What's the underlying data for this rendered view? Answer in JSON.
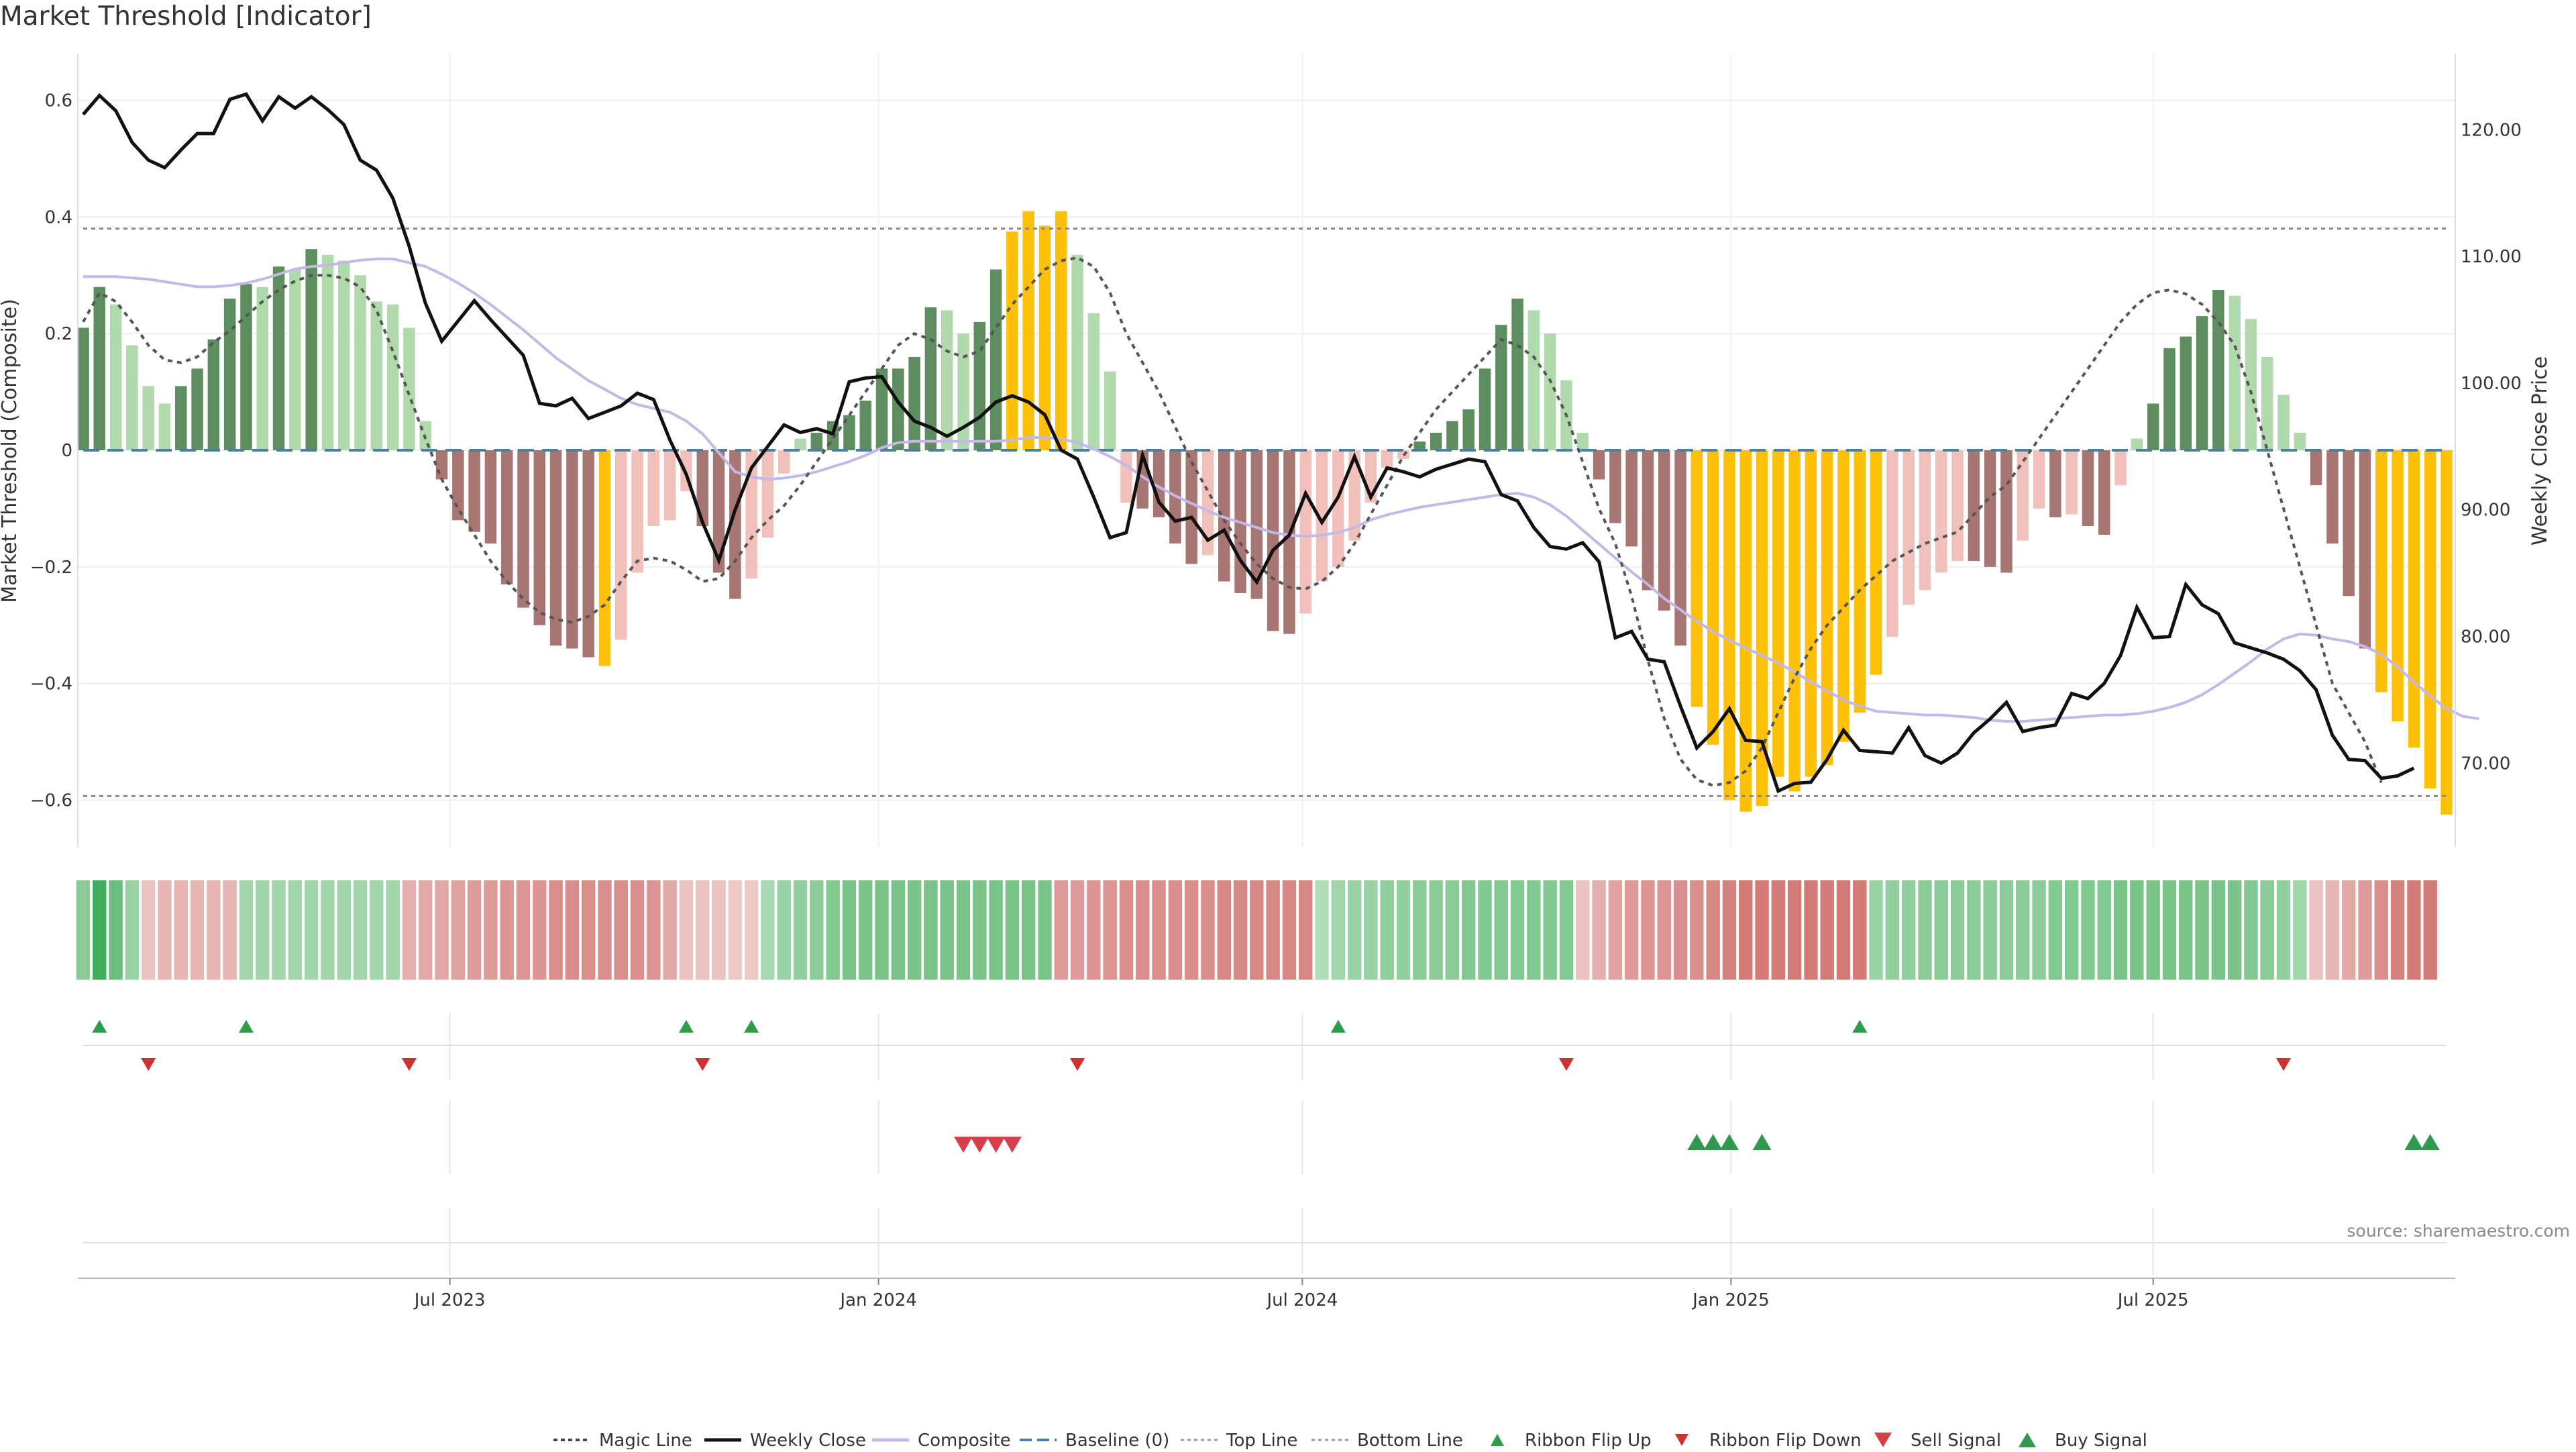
{
  "header": {
    "title": "Market Threshold [Indicator]"
  },
  "footer": {
    "source": "source: sharemaestro.com"
  },
  "chart_data": {
    "type": "bar",
    "title": "Market Threshold [Indicator]",
    "ylabel": "Market Threshold (Composite)",
    "y2label": "Weekly Close Price",
    "ylim": [
      -0.68,
      0.68
    ],
    "y2lim": [
      63.4,
      126.0
    ],
    "yticks": [
      -0.6,
      -0.4,
      -0.2,
      0,
      0.2,
      0.4,
      0.6
    ],
    "ytick_labels": [
      "−0.6",
      "−0.4",
      "−0.2",
      "0",
      "0.2",
      "0.4",
      "0.6"
    ],
    "y2ticks": [
      70,
      80,
      90,
      100,
      110,
      120
    ],
    "y2tick_labels": [
      "70.00",
      "80.00",
      "90.00",
      "100.00",
      "110.00",
      "120.00"
    ],
    "xticks": [
      {
        "index": 22.5,
        "label": "Jul 2023"
      },
      {
        "index": 48.8,
        "label": "Jan 2024"
      },
      {
        "index": 74.8,
        "label": "Jul 2024"
      },
      {
        "index": 101.1,
        "label": "Jan 2025"
      },
      {
        "index": 127.0,
        "label": "Jul 2025"
      }
    ],
    "top_line": 0.38,
    "bottom_line": -0.593,
    "composite": [
      0.21,
      0.28,
      0.25,
      0.18,
      0.11,
      0.08,
      0.11,
      0.14,
      0.19,
      0.26,
      0.285,
      0.28,
      0.315,
      0.31,
      0.345,
      0.335,
      0.325,
      0.3,
      0.255,
      0.25,
      0.21,
      0.05,
      -0.05,
      -0.12,
      -0.14,
      -0.16,
      -0.23,
      -0.27,
      -0.3,
      -0.335,
      -0.34,
      -0.355,
      -0.37,
      -0.325,
      -0.21,
      -0.13,
      -0.12,
      -0.07,
      -0.13,
      -0.21,
      -0.255,
      -0.22,
      -0.15,
      -0.04,
      0.02,
      0.03,
      0.05,
      0.06,
      0.085,
      0.14,
      0.14,
      0.16,
      0.245,
      0.24,
      0.2,
      0.22,
      0.31,
      0.375,
      0.41,
      0.385,
      0.41,
      0.335,
      0.235,
      0.135,
      -0.09,
      -0.1,
      -0.115,
      -0.16,
      -0.195,
      -0.18,
      -0.225,
      -0.245,
      -0.255,
      -0.31,
      -0.315,
      -0.28,
      -0.225,
      -0.2,
      -0.155,
      -0.09,
      -0.03,
      -0.015,
      0.015,
      0.03,
      0.05,
      0.07,
      0.14,
      0.215,
      0.26,
      0.24,
      0.2,
      0.12,
      0.03,
      -0.05,
      -0.125,
      -0.165,
      -0.24,
      -0.275,
      -0.335,
      -0.44,
      -0.505,
      -0.6,
      -0.62,
      -0.61,
      -0.56,
      -0.585,
      -0.56,
      -0.54,
      -0.5,
      -0.45,
      -0.385,
      -0.32,
      -0.265,
      -0.24,
      -0.21,
      -0.19,
      -0.19,
      -0.2,
      -0.21,
      -0.155,
      -0.1,
      -0.115,
      -0.11,
      -0.13,
      -0.145,
      -0.06,
      0.02,
      0.08,
      0.175,
      0.195,
      0.23,
      0.275,
      0.265,
      0.225,
      0.16,
      0.095,
      0.03,
      -0.06,
      -0.16,
      -0.25,
      -0.34,
      -0.415,
      -0.465,
      -0.51,
      -0.58,
      -0.625
    ],
    "weekly_close": [
      121.2,
      122.7,
      121.5,
      119.0,
      117.6,
      117.0,
      118.4,
      119.7,
      119.7,
      122.4,
      122.8,
      120.7,
      122.6,
      121.7,
      122.6,
      121.6,
      120.4,
      117.6,
      116.8,
      114.6,
      110.8,
      106.3,
      103.3,
      104.9,
      106.5,
      105.0,
      103.6,
      102.2,
      98.4,
      98.2,
      98.8,
      97.2,
      97.7,
      98.2,
      99.2,
      98.7,
      95.5,
      92.8,
      89.0,
      86.0,
      90.0,
      93.3,
      95.0,
      96.7,
      96.1,
      96.4,
      96.0,
      100.1,
      100.4,
      100.5,
      98.5,
      97.0,
      96.5,
      95.8,
      96.5,
      97.3,
      98.5,
      99.0,
      98.5,
      97.5,
      94.7,
      94.0,
      91.0,
      87.8,
      88.2,
      94.3,
      90.6,
      89.1,
      89.4,
      87.6,
      88.4,
      86.0,
      84.3,
      86.8,
      88.0,
      91.3,
      89.0,
      91.0,
      94.2,
      91.0,
      93.3,
      93.0,
      92.6,
      93.2,
      93.6,
      94.0,
      93.8,
      91.2,
      90.7,
      88.6,
      87.1,
      86.9,
      87.4,
      85.9,
      79.9,
      80.4,
      78.2,
      78.0,
      74.5,
      71.2,
      72.5,
      74.3,
      71.8,
      71.7,
      67.8,
      68.4,
      68.5,
      70.3,
      72.6,
      71.0,
      70.9,
      70.8,
      72.8,
      70.6,
      70.0,
      70.8,
      72.4,
      73.5,
      74.8,
      72.5,
      72.8,
      73.0,
      75.5,
      75.1,
      76.3,
      78.5,
      82.3,
      79.9,
      80.0,
      84.1,
      82.5,
      81.8,
      79.5,
      79.1,
      78.7,
      78.2,
      77.3,
      75.8,
      72.2,
      70.3,
      70.2,
      68.8,
      69.0,
      69.6
    ],
    "magic_line": [
      0.22,
      0.27,
      0.255,
      0.22,
      0.18,
      0.155,
      0.15,
      0.16,
      0.185,
      0.205,
      0.23,
      0.255,
      0.275,
      0.29,
      0.3,
      0.3,
      0.295,
      0.28,
      0.24,
      0.17,
      0.095,
      0.02,
      -0.05,
      -0.1,
      -0.145,
      -0.19,
      -0.225,
      -0.255,
      -0.278,
      -0.29,
      -0.295,
      -0.285,
      -0.265,
      -0.225,
      -0.19,
      -0.185,
      -0.19,
      -0.205,
      -0.225,
      -0.22,
      -0.19,
      -0.15,
      -0.12,
      -0.095,
      -0.06,
      -0.02,
      0.02,
      0.06,
      0.1,
      0.14,
      0.18,
      0.2,
      0.19,
      0.17,
      0.16,
      0.17,
      0.21,
      0.25,
      0.28,
      0.31,
      0.325,
      0.33,
      0.315,
      0.27,
      0.2,
      0.15,
      0.1,
      0.04,
      -0.02,
      -0.07,
      -0.12,
      -0.16,
      -0.195,
      -0.22,
      -0.235,
      -0.238,
      -0.225,
      -0.2,
      -0.16,
      -0.11,
      -0.06,
      -0.01,
      0.03,
      0.07,
      0.1,
      0.13,
      0.16,
      0.19,
      0.18,
      0.16,
      0.12,
      0.06,
      -0.02,
      -0.1,
      -0.16,
      -0.25,
      -0.36,
      -0.46,
      -0.53,
      -0.565,
      -0.575,
      -0.57,
      -0.55,
      -0.51,
      -0.45,
      -0.39,
      -0.34,
      -0.3,
      -0.27,
      -0.24,
      -0.215,
      -0.19,
      -0.175,
      -0.16,
      -0.15,
      -0.14,
      -0.11,
      -0.08,
      -0.06,
      -0.02,
      0.02,
      0.06,
      0.1,
      0.14,
      0.18,
      0.22,
      0.25,
      0.27,
      0.275,
      0.268,
      0.25,
      0.22,
      0.18,
      0.1,
      0.0,
      -0.1,
      -0.2,
      -0.3,
      -0.4,
      -0.45,
      -0.5,
      -0.57
    ],
    "composite_smooth": [
      108.4,
      108.4,
      108.4,
      108.3,
      108.2,
      108.0,
      107.8,
      107.6,
      107.6,
      107.7,
      107.9,
      108.2,
      108.6,
      109.0,
      109.2,
      109.3,
      109.5,
      109.7,
      109.8,
      109.8,
      109.5,
      109.2,
      108.6,
      107.9,
      107.1,
      106.2,
      105.2,
      104.2,
      103.1,
      102.0,
      101.1,
      100.2,
      99.5,
      98.8,
      98.3,
      98.0,
      97.7,
      97.0,
      96.0,
      94.5,
      93.0,
      92.6,
      92.4,
      92.5,
      92.7,
      93.0,
      93.4,
      93.8,
      94.3,
      94.9,
      95.3,
      95.4,
      95.4,
      95.4,
      95.4,
      95.4,
      95.4,
      95.5,
      95.7,
      95.7,
      95.6,
      95.3,
      94.8,
      94.2,
      93.5,
      92.6,
      91.8,
      91.1,
      90.5,
      89.9,
      89.4,
      89.0,
      88.6,
      88.2,
      88.0,
      87.9,
      88.0,
      88.2,
      88.6,
      89.2,
      89.6,
      89.9,
      90.2,
      90.4,
      90.6,
      90.8,
      91.0,
      91.2,
      91.3,
      91.0,
      90.4,
      89.5,
      88.4,
      87.3,
      86.2,
      85.1,
      84.1,
      83.0,
      82.1,
      81.2,
      80.4,
      79.7,
      79.1,
      78.5,
      77.9,
      77.2,
      76.4,
      75.7,
      75.0,
      74.5,
      74.1,
      74.0,
      73.9,
      73.8,
      73.8,
      73.7,
      73.6,
      73.4,
      73.3,
      73.3,
      73.4,
      73.5,
      73.6,
      73.7,
      73.8,
      73.8,
      73.9,
      74.1,
      74.4,
      74.8,
      75.4,
      76.2,
      77.1,
      78.0,
      79.0,
      79.8,
      80.2,
      80.1,
      79.8,
      79.6,
      79.2,
      78.6,
      77.6,
      76.4,
      75.3,
      74.3,
      73.7,
      73.5
    ],
    "ribbon": [
      0.5,
      0.95,
      0.7,
      0.4,
      -0.2,
      -0.3,
      -0.3,
      -0.3,
      -0.3,
      -0.3,
      0.35,
      0.35,
      0.35,
      0.35,
      0.35,
      0.35,
      0.35,
      0.35,
      0.35,
      0.35,
      -0.35,
      -0.4,
      -0.4,
      -0.45,
      -0.5,
      -0.5,
      -0.55,
      -0.55,
      -0.55,
      -0.6,
      -0.6,
      -0.6,
      -0.6,
      -0.6,
      -0.6,
      -0.55,
      -0.4,
      -0.2,
      -0.2,
      -0.2,
      -0.15,
      -0.15,
      0.3,
      0.4,
      0.45,
      0.5,
      0.55,
      0.6,
      0.6,
      0.6,
      0.6,
      0.6,
      0.6,
      0.6,
      0.6,
      0.6,
      0.6,
      0.6,
      0.6,
      0.6,
      -0.5,
      -0.5,
      -0.55,
      -0.55,
      -0.6,
      -0.6,
      -0.6,
      -0.6,
      -0.6,
      -0.6,
      -0.65,
      -0.65,
      -0.65,
      -0.65,
      -0.65,
      -0.65,
      0.25,
      0.35,
      0.4,
      0.4,
      0.45,
      0.45,
      0.5,
      0.5,
      0.5,
      0.55,
      0.55,
      0.55,
      0.55,
      0.55,
      0.55,
      0.55,
      -0.2,
      -0.35,
      -0.45,
      -0.5,
      -0.55,
      -0.55,
      -0.6,
      -0.6,
      -0.65,
      -0.7,
      -0.75,
      -0.75,
      -0.75,
      -0.75,
      -0.75,
      -0.75,
      -0.75,
      -0.75,
      0.4,
      0.45,
      0.45,
      0.5,
      0.5,
      0.5,
      0.5,
      0.5,
      0.5,
      0.5,
      0.5,
      0.55,
      0.55,
      0.55,
      0.55,
      0.6,
      0.6,
      0.6,
      0.6,
      0.6,
      0.6,
      0.6,
      0.6,
      0.55,
      0.5,
      0.45,
      0.35,
      -0.2,
      -0.3,
      -0.4,
      -0.5,
      -0.6,
      -0.7,
      -0.75,
      -0.75
    ],
    "ribbon_flip_up_idx": [
      1,
      10,
      37,
      41,
      77,
      109
    ],
    "ribbon_flip_down_idx": [
      4,
      20,
      38,
      61,
      91,
      135
    ],
    "sell_signal_idx": [
      54,
      55,
      56,
      57
    ],
    "buy_signal_idx": [
      99,
      100,
      101,
      103,
      143,
      144
    ],
    "legend": [
      {
        "label": "Magic Line",
        "kind": "dotted-dark"
      },
      {
        "label": "Weekly Close",
        "kind": "solid-black"
      },
      {
        "label": "Composite",
        "kind": "solid-lavender"
      },
      {
        "label": "Baseline (0)",
        "kind": "dashed-blue"
      },
      {
        "label": "Top Line",
        "kind": "dotted-grey"
      },
      {
        "label": "Bottom Line",
        "kind": "dotted-grey"
      },
      {
        "label": "Ribbon Flip Up",
        "kind": "tri-up-green"
      },
      {
        "label": "Ribbon Flip Down",
        "kind": "tri-down-red"
      },
      {
        "label": "Sell Signal",
        "kind": "tri-down-red-big"
      },
      {
        "label": "Buy Signal",
        "kind": "tri-up-green-big"
      }
    ],
    "colors": {
      "pos_strong": "#5e8e5f",
      "pos_weak": "#b0d9ac",
      "neg_strong": "#a87672",
      "neg_weak": "#f2c0ba",
      "extreme": "#ffc107",
      "close": "#111111",
      "composite_line": "#c3b8e6",
      "magic": "#555555",
      "baseline": "#4a7fa3",
      "flip_up": "#2e9c4a",
      "flip_down": "#d22f2f"
    }
  }
}
